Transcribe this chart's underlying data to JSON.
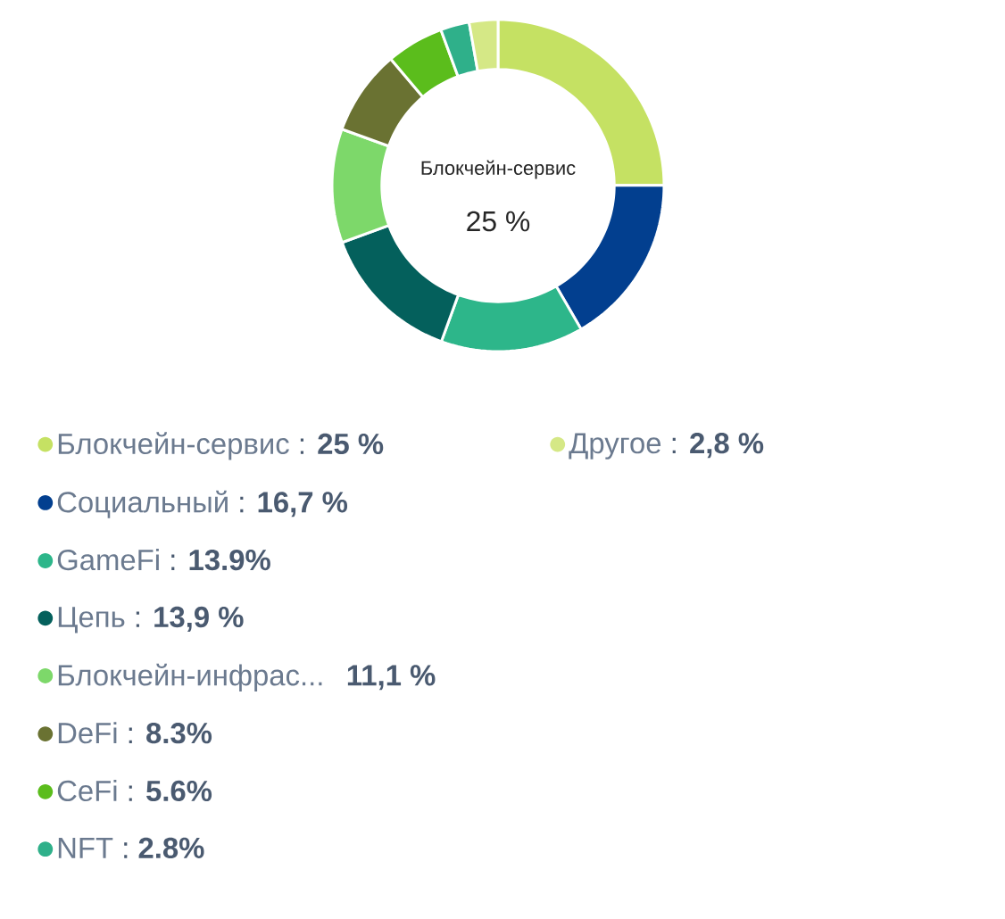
{
  "chart_data": {
    "type": "donut",
    "categories": [
      "Блокчейн-сервис",
      "Социальный",
      "GameFi",
      "Цепь",
      "Блокчейн-инфрас...",
      "DeFi",
      "CeFi",
      "NFT",
      "Другое"
    ],
    "values": [
      25,
      16.7,
      13.9,
      13.9,
      11.1,
      8.3,
      5.6,
      2.8,
      2.8
    ],
    "value_labels": [
      ": **25 %**",
      ": **16,7 %**",
      ": **13.9%**",
      ": **13,9 %**",
      "  **11,1 %**",
      ": **8.3%**",
      ": **5.6%**",
      ": **2.8%**",
      ": **2,8 %**"
    ],
    "colors": [
      "#c5e163",
      "#023f8f",
      "#2db68a",
      "#04605c",
      "#7dd86a",
      "#6a7232",
      "#5bbd1c",
      "#2fb08a",
      "#d5e886"
    ],
    "annotations": [
      "Блокчейн-сервис",
      "25 %"
    ],
    "legend": "bottom"
  }
}
